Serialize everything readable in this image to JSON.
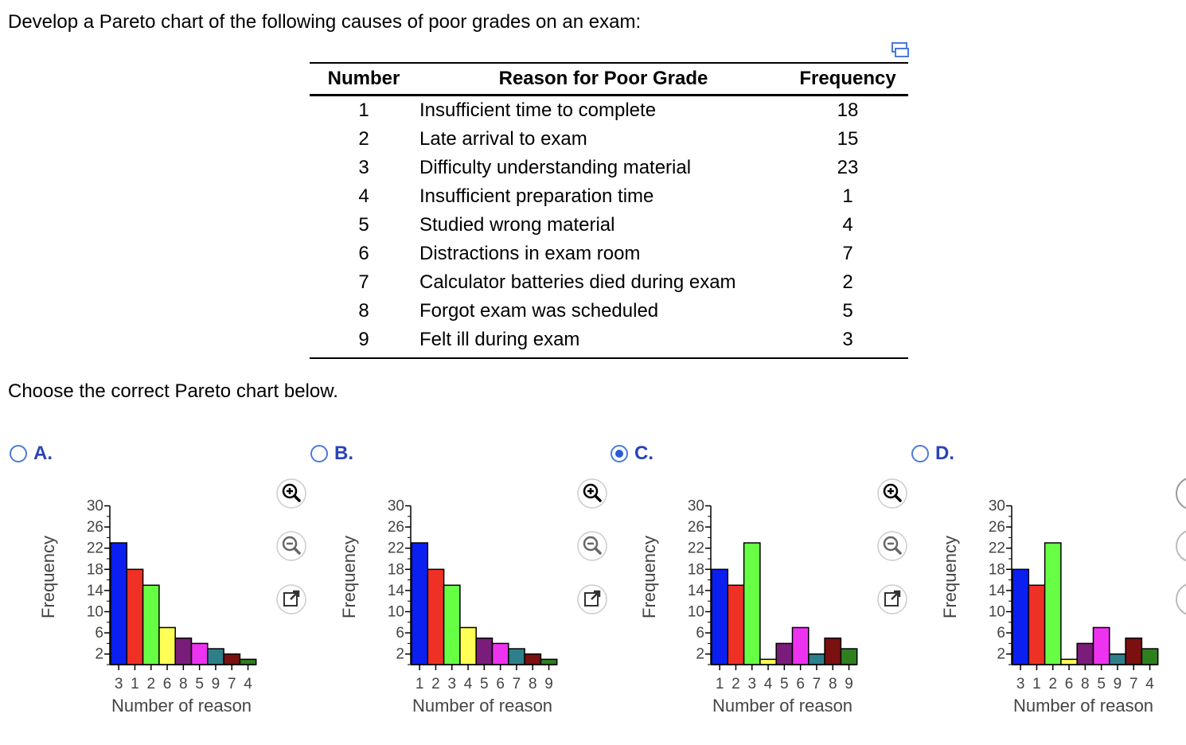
{
  "question": "Develop a Pareto chart of the following causes of poor grades on an exam:",
  "table": {
    "headers": [
      "Number",
      "Reason for Poor Grade",
      "Frequency"
    ],
    "rows": [
      [
        "1",
        "Insufficient time to complete",
        "18"
      ],
      [
        "2",
        "Late arrival to exam",
        "15"
      ],
      [
        "3",
        "Difficulty understanding material",
        "23"
      ],
      [
        "4",
        "Insufficient preparation time",
        "1"
      ],
      [
        "5",
        "Studied wrong material",
        "4"
      ],
      [
        "6",
        "Distractions in exam room",
        "7"
      ],
      [
        "7",
        "Calculator batteries died during exam",
        "2"
      ],
      [
        "8",
        "Forgot exam was scheduled",
        "5"
      ],
      [
        "9",
        "Felt ill during exam",
        "3"
      ]
    ]
  },
  "prompt": "Choose the correct Pareto chart below.",
  "selected_option": "C",
  "colors": {
    "1": "#ee3124",
    "2": "#67ff44",
    "3": "#0a1ff0",
    "4": "#2f7f1f",
    "5": "#ee33f0",
    "6": "#ffff55",
    "7": "#7b1010",
    "8": "#7a1c7a",
    "9": "#2e7f8a",
    "option_label": "#2a43b8"
  },
  "options": [
    {
      "label": "A.",
      "categories": [
        "3",
        "1",
        "2",
        "6",
        "8",
        "5",
        "9",
        "7",
        "4"
      ],
      "values": [
        23,
        18,
        15,
        7,
        5,
        4,
        3,
        2,
        1
      ],
      "bar_colors": [
        "#0a1ff0",
        "#ee3124",
        "#67ff44",
        "#ffff55",
        "#7a1c7a",
        "#ee33f0",
        "#2e7f8a",
        "#7b1010",
        "#2f7f1f"
      ]
    },
    {
      "label": "B.",
      "categories": [
        "1",
        "2",
        "3",
        "4",
        "5",
        "6",
        "7",
        "8",
        "9"
      ],
      "values": [
        23,
        18,
        15,
        7,
        5,
        4,
        3,
        2,
        1
      ],
      "bar_colors": [
        "#0a1ff0",
        "#ee3124",
        "#67ff44",
        "#ffff55",
        "#7a1c7a",
        "#ee33f0",
        "#2e7f8a",
        "#7b1010",
        "#2f7f1f"
      ]
    },
    {
      "label": "C.",
      "categories": [
        "1",
        "2",
        "3",
        "4",
        "5",
        "6",
        "7",
        "8",
        "9"
      ],
      "values": [
        18,
        15,
        23,
        1,
        4,
        7,
        2,
        5,
        3
      ],
      "bar_colors": [
        "#0a1ff0",
        "#ee3124",
        "#67ff44",
        "#ffff55",
        "#7a1c7a",
        "#ee33f0",
        "#2e7f8a",
        "#7b1010",
        "#2f7f1f"
      ]
    },
    {
      "label": "D.",
      "categories": [
        "3",
        "1",
        "2",
        "6",
        "8",
        "5",
        "9",
        "7",
        "4"
      ],
      "values": [
        18,
        15,
        23,
        1,
        4,
        7,
        2,
        5,
        3
      ],
      "bar_colors": [
        "#0a1ff0",
        "#ee3124",
        "#67ff44",
        "#ffff55",
        "#7a1c7a",
        "#ee33f0",
        "#2e7f8a",
        "#7b1010",
        "#2f7f1f"
      ]
    }
  ],
  "chart_data": [
    {
      "type": "bar",
      "title": "",
      "xlabel": "Number of reason",
      "ylabel": "Frequency",
      "ylim": [
        0,
        30
      ],
      "yticks": [
        2,
        6,
        10,
        14,
        18,
        22,
        26,
        30
      ],
      "categories": [
        "3",
        "1",
        "2",
        "6",
        "8",
        "5",
        "9",
        "7",
        "4"
      ],
      "values": [
        23,
        18,
        15,
        7,
        5,
        4,
        3,
        2,
        1
      ]
    },
    {
      "type": "bar",
      "title": "",
      "xlabel": "Number of reason",
      "ylabel": "Frequency",
      "ylim": [
        0,
        30
      ],
      "yticks": [
        2,
        6,
        10,
        14,
        18,
        22,
        26,
        30
      ],
      "categories": [
        "1",
        "2",
        "3",
        "4",
        "5",
        "6",
        "7",
        "8",
        "9"
      ],
      "values": [
        23,
        18,
        15,
        7,
        5,
        4,
        3,
        2,
        1
      ]
    },
    {
      "type": "bar",
      "title": "",
      "xlabel": "Number of reason",
      "ylabel": "Frequency",
      "ylim": [
        0,
        30
      ],
      "yticks": [
        2,
        6,
        10,
        14,
        18,
        22,
        26,
        30
      ],
      "categories": [
        "1",
        "2",
        "3",
        "4",
        "5",
        "6",
        "7",
        "8",
        "9"
      ],
      "values": [
        18,
        15,
        23,
        1,
        4,
        7,
        2,
        5,
        3
      ]
    },
    {
      "type": "bar",
      "title": "",
      "xlabel": "Number of reason",
      "ylabel": "Frequency",
      "ylim": [
        0,
        30
      ],
      "yticks": [
        2,
        6,
        10,
        14,
        18,
        22,
        26,
        30
      ],
      "categories": [
        "3",
        "1",
        "2",
        "6",
        "8",
        "5",
        "9",
        "7",
        "4"
      ],
      "values": [
        18,
        15,
        23,
        1,
        4,
        7,
        2,
        5,
        3
      ]
    }
  ]
}
